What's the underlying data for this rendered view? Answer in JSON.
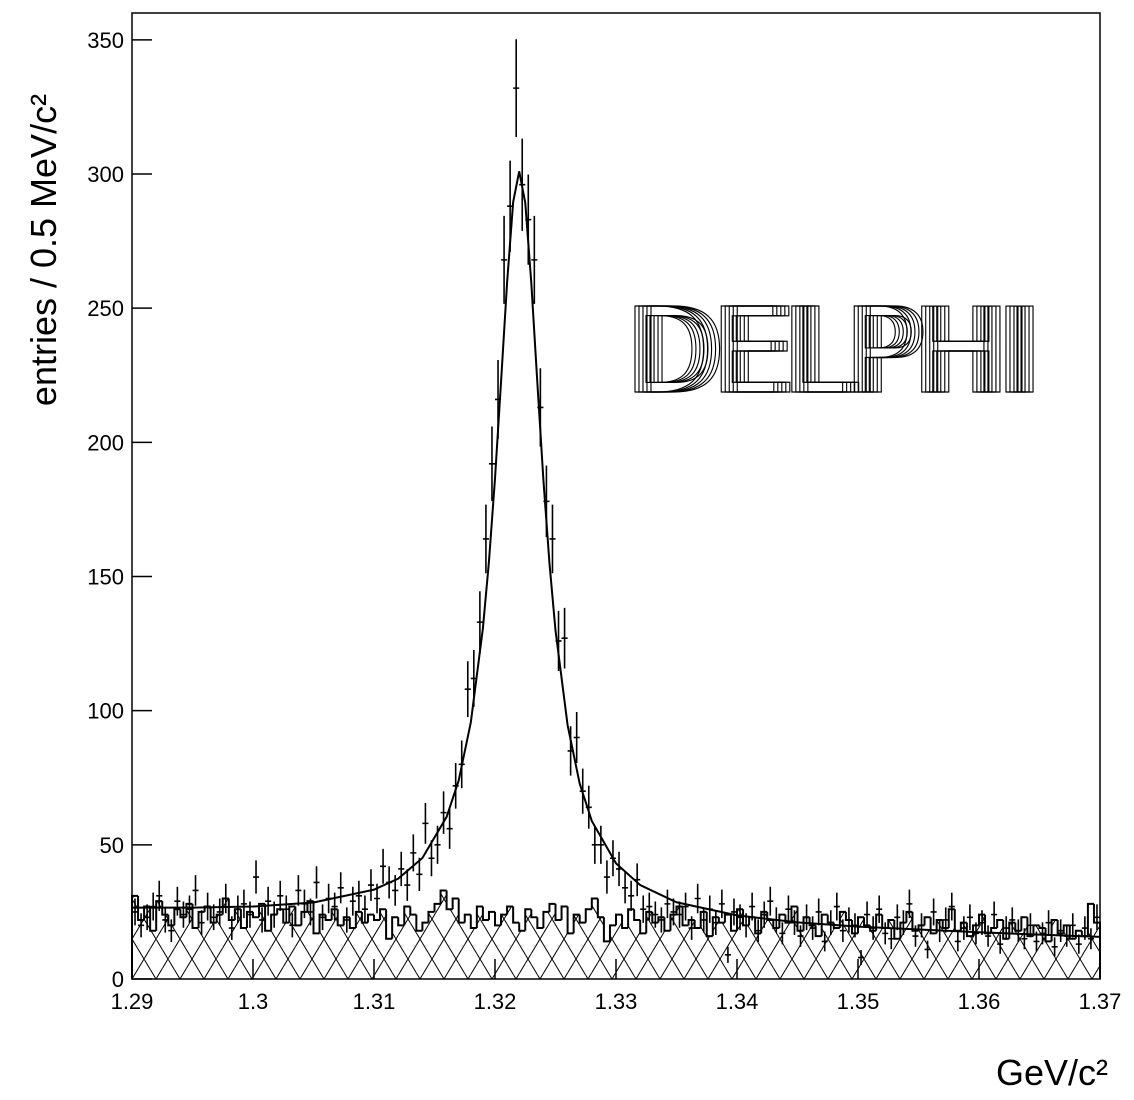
{
  "chart_data": {
    "type": "histogram",
    "y_label": "entries / 0.5 MeV/c²",
    "x_label": "GeV/c²",
    "annotation": "DELPHI",
    "color": "#000000",
    "xlim": [
      1.29,
      1.37
    ],
    "ylim": [
      0,
      360
    ],
    "xticks": [
      1.29,
      1.3,
      1.31,
      1.32,
      1.33,
      1.34,
      1.35,
      1.36,
      1.37
    ],
    "yticks": [
      0,
      50,
      100,
      150,
      200,
      250,
      300,
      350
    ],
    "bins": [
      1.29,
      1.2905,
      1.291,
      1.2915,
      1.292,
      1.2925,
      1.293,
      1.2935,
      1.294,
      1.2945,
      1.295,
      1.2955,
      1.296,
      1.2965,
      1.297,
      1.2975,
      1.298,
      1.2985,
      1.299,
      1.2995,
      1.3,
      1.3005,
      1.301,
      1.3015,
      1.302,
      1.3025,
      1.303,
      1.3035,
      1.304,
      1.3045,
      1.305,
      1.3055,
      1.306,
      1.3065,
      1.307,
      1.3075,
      1.308,
      1.3085,
      1.309,
      1.3095,
      1.31,
      1.3105,
      1.311,
      1.3115,
      1.312,
      1.3125,
      1.313,
      1.3135,
      1.314,
      1.3145,
      1.315,
      1.3155,
      1.316,
      1.3165,
      1.317,
      1.3175,
      1.318,
      1.3185,
      1.319,
      1.3195,
      1.32,
      1.3205,
      1.321,
      1.3215,
      1.322,
      1.3225,
      1.323,
      1.3235,
      1.324,
      1.3245,
      1.325,
      1.3255,
      1.326,
      1.3265,
      1.327,
      1.3275,
      1.328,
      1.3285,
      1.329,
      1.3295,
      1.33,
      1.3305,
      1.331,
      1.3315,
      1.332,
      1.3325,
      1.333,
      1.3335,
      1.334,
      1.3345,
      1.335,
      1.3355,
      1.336,
      1.3365,
      1.337,
      1.3375,
      1.338,
      1.3385,
      1.339,
      1.3395,
      1.34,
      1.3405,
      1.341,
      1.3415,
      1.342,
      1.3425,
      1.343,
      1.3435,
      1.344,
      1.3445,
      1.345,
      1.3455,
      1.346,
      1.3465,
      1.347,
      1.3475,
      1.348,
      1.3485,
      1.349,
      1.3495,
      1.35,
      1.3505,
      1.351,
      1.3515,
      1.352,
      1.3525,
      1.353,
      1.3535,
      1.354,
      1.3545,
      1.355,
      1.3555,
      1.356,
      1.3565,
      1.357,
      1.3575,
      1.358,
      1.3585,
      1.359,
      1.3595,
      1.36,
      1.3605,
      1.361,
      1.3615,
      1.362,
      1.3625,
      1.363,
      1.3635,
      1.364,
      1.3645,
      1.365,
      1.3655,
      1.366,
      1.3665,
      1.367,
      1.3675,
      1.368,
      1.3685,
      1.369,
      1.3695,
      1.37
    ],
    "background": {
      "hatch": true,
      "values": [
        31,
        22,
        27,
        18,
        29,
        24,
        20,
        26,
        23,
        28,
        19,
        25,
        27,
        21,
        24,
        30,
        22,
        26,
        19,
        25,
        23,
        28,
        18,
        24,
        26,
        21,
        27,
        20,
        25,
        29,
        17,
        24,
        22,
        26,
        20,
        23,
        19,
        25,
        21,
        24,
        22,
        26,
        15,
        23,
        20,
        27,
        24,
        18,
        21,
        25,
        28,
        33,
        26,
        30,
        21,
        24,
        19,
        27,
        22,
        25,
        20,
        24,
        27,
        21,
        18,
        26,
        23,
        19,
        25,
        28,
        22,
        27,
        17,
        24,
        21,
        26,
        30,
        23,
        14,
        20,
        24,
        19,
        26,
        22,
        17,
        25,
        21,
        23,
        18,
        24,
        27,
        20,
        22,
        19,
        25,
        16,
        23,
        21,
        24,
        18,
        26,
        20,
        23,
        17,
        25,
        22,
        19,
        24,
        21,
        27,
        18,
        23,
        20,
        16,
        24,
        21,
        19,
        25,
        22,
        17,
        23,
        20,
        18,
        24,
        19,
        22,
        15,
        21,
        25,
        18,
        20,
        23,
        17,
        22,
        19,
        26,
        18,
        21,
        16,
        20,
        24,
        17,
        19,
        22,
        15,
        21,
        18,
        23,
        16,
        20,
        19,
        14,
        22,
        17,
        20,
        15,
        18,
        16,
        28,
        21
      ]
    },
    "data": {
      "values": [
        25,
        20,
        23,
        27,
        31,
        22,
        18,
        29,
        24,
        26,
        33,
        21,
        27,
        23,
        25,
        30,
        19,
        26,
        28,
        24,
        38,
        22,
        29,
        24,
        31,
        26,
        20,
        33,
        28,
        25,
        36,
        23,
        30,
        27,
        34,
        22,
        29,
        31,
        26,
        35,
        30,
        42,
        36,
        33,
        41,
        35,
        47,
        39,
        58,
        45,
        50,
        62,
        56,
        72,
        80,
        108,
        112,
        133,
        164,
        192,
        216,
        268,
        288,
        332,
        296,
        283,
        268,
        213,
        178,
        164,
        126,
        127,
        85,
        90,
        70,
        64,
        50,
        50,
        38,
        45,
        41,
        34,
        31,
        37,
        26,
        27,
        24,
        22,
        28,
        25,
        24,
        27,
        19,
        30,
        22,
        26,
        21,
        28,
        9,
        25,
        23,
        20,
        27,
        18,
        24,
        29,
        22,
        17,
        26,
        21,
        16,
        23,
        19,
        25,
        14,
        21,
        27,
        18,
        22,
        20,
        8,
        24,
        19,
        26,
        17,
        15,
        23,
        21,
        28,
        16,
        20,
        11,
        25,
        18,
        22,
        27,
        14,
        19,
        23,
        17,
        21,
        16,
        24,
        13,
        19,
        22,
        18,
        15,
        20,
        14,
        17,
        21,
        12,
        18,
        16,
        20,
        13,
        19,
        15,
        23
      ],
      "errors": [
        5.0,
        4.5,
        4.8,
        5.2,
        5.6,
        4.7,
        4.2,
        5.4,
        4.9,
        5.1,
        5.7,
        4.6,
        5.2,
        4.8,
        5.0,
        5.5,
        4.4,
        5.1,
        5.3,
        4.9,
        6.2,
        4.7,
        5.4,
        4.9,
        5.6,
        5.1,
        4.5,
        5.7,
        5.3,
        5.0,
        6.0,
        4.8,
        5.5,
        5.2,
        5.8,
        4.7,
        5.4,
        5.6,
        5.1,
        5.9,
        5.5,
        6.5,
        6.0,
        5.7,
        6.4,
        5.9,
        6.9,
        6.2,
        7.6,
        6.7,
        7.1,
        7.9,
        7.5,
        8.5,
        8.9,
        10.4,
        10.6,
        11.5,
        12.8,
        13.9,
        14.7,
        16.4,
        17.0,
        18.2,
        17.2,
        16.8,
        16.4,
        14.6,
        13.3,
        12.8,
        11.2,
        11.3,
        9.2,
        9.5,
        8.4,
        8.0,
        7.1,
        7.1,
        6.2,
        6.7,
        6.4,
        5.8,
        5.6,
        6.1,
        5.1,
        5.2,
        4.9,
        4.7,
        5.3,
        5.0,
        4.9,
        5.2,
        4.4,
        5.5,
        4.7,
        5.1,
        4.6,
        5.3,
        3.0,
        5.0,
        4.8,
        4.5,
        5.2,
        4.2,
        4.9,
        5.4,
        4.7,
        4.1,
        5.1,
        4.6,
        4.0,
        4.8,
        4.4,
        5.0,
        3.7,
        4.6,
        5.2,
        4.2,
        4.7,
        4.5,
        2.8,
        4.9,
        4.4,
        5.1,
        4.1,
        3.9,
        4.8,
        4.6,
        5.3,
        4.0,
        4.5,
        3.3,
        5.0,
        4.2,
        4.7,
        5.2,
        3.7,
        4.4,
        4.8,
        4.1,
        4.6,
        4.0,
        4.9,
        3.6,
        4.4,
        4.7,
        4.2,
        3.9,
        4.5,
        3.7,
        4.1,
        4.6,
        3.5,
        4.2,
        4.0,
        4.5,
        3.6,
        4.4,
        3.9,
        4.8
      ]
    },
    "fit": {
      "x": [
        1.29,
        1.295,
        1.3,
        1.305,
        1.31,
        1.312,
        1.314,
        1.316,
        1.317,
        1.318,
        1.319,
        1.3195,
        1.32,
        1.3205,
        1.321,
        1.3215,
        1.322,
        1.3225,
        1.323,
        1.3235,
        1.324,
        1.3245,
        1.325,
        1.326,
        1.327,
        1.328,
        1.33,
        1.332,
        1.335,
        1.34,
        1.345,
        1.35,
        1.36,
        1.37
      ],
      "y": [
        26.6,
        26.6,
        27.0,
        28.5,
        33.3,
        37.4,
        45.1,
        60.4,
        74.0,
        95.6,
        130.7,
        155.6,
        186.5,
        222.6,
        259.6,
        289.5,
        301,
        289.3,
        259.4,
        222.2,
        186.0,
        155.0,
        129.9,
        94.6,
        72.8,
        58.9,
        43.1,
        35.0,
        28.6,
        23.7,
        21.1,
        19.5,
        17.4,
        15.7
      ]
    }
  }
}
